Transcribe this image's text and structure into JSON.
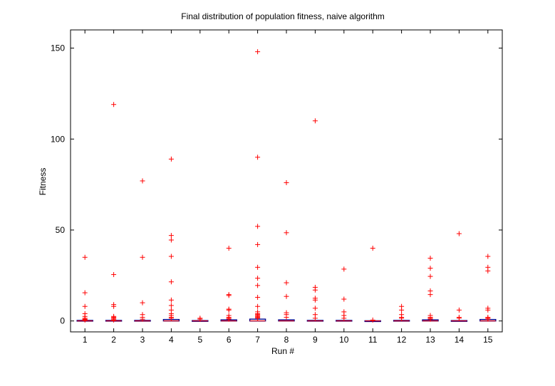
{
  "chart_data": {
    "type": "box",
    "title": "Final distribution of population fitness, naive algorithm",
    "xlabel": "Run #",
    "ylabel": "Fitness",
    "ylim": [
      -6,
      160
    ],
    "y_ticks": [
      0,
      50,
      100,
      150
    ],
    "categories": [
      "1",
      "2",
      "3",
      "4",
      "5",
      "6",
      "7",
      "8",
      "9",
      "10",
      "11",
      "12",
      "13",
      "14",
      "15"
    ],
    "grid": false,
    "legend": "none",
    "colors": {
      "outlier": "#ff0000",
      "median": "#ff0000",
      "box": "#00008b",
      "axis": "#000000"
    },
    "runs": [
      {
        "run": "1",
        "q1": 0,
        "median": 0,
        "q3": 0.3,
        "outliers": [
          35,
          15.5,
          8,
          4,
          2.5,
          1.5,
          1,
          0.8,
          0.5
        ]
      },
      {
        "run": "2",
        "q1": 0,
        "median": 0,
        "q3": 0.3,
        "outliers": [
          119,
          25.5,
          9,
          8,
          2.5,
          2,
          1.5,
          1,
          0.5
        ]
      },
      {
        "run": "3",
        "q1": 0,
        "median": 0,
        "q3": 0.3,
        "outliers": [
          77,
          35,
          10,
          3.5,
          2,
          1
        ]
      },
      {
        "run": "4",
        "q1": 0,
        "median": 0,
        "q3": 0.8,
        "outliers": [
          89,
          47,
          44.5,
          35.5,
          21.5,
          11.5,
          8.5,
          6,
          4,
          3,
          2,
          1.5
        ]
      },
      {
        "run": "5",
        "q1": 0,
        "median": 0,
        "q3": 0.2,
        "outliers": [
          1.5,
          1
        ]
      },
      {
        "run": "6",
        "q1": 0,
        "median": 0,
        "q3": 0.6,
        "outliers": [
          40,
          14.5,
          14,
          6.5,
          6,
          3,
          2,
          1.5,
          1
        ]
      },
      {
        "run": "7",
        "q1": 0,
        "median": 0,
        "q3": 1.0,
        "outliers": [
          148,
          90,
          52,
          42,
          29.5,
          23.5,
          19.5,
          13,
          8,
          5,
          4,
          3.5,
          3,
          2.5,
          2,
          1.5
        ]
      },
      {
        "run": "8",
        "q1": 0,
        "median": 0,
        "q3": 0.6,
        "outliers": [
          76,
          48.5,
          21,
          13.5,
          4.5,
          3.5,
          2
        ]
      },
      {
        "run": "9",
        "q1": 0,
        "median": 0,
        "q3": 0.3,
        "outliers": [
          110,
          18.5,
          17,
          12.5,
          11.5,
          7,
          3.5,
          1.5
        ]
      },
      {
        "run": "10",
        "q1": 0,
        "median": 0,
        "q3": 0.3,
        "outliers": [
          28.5,
          12,
          5,
          3,
          1.5
        ]
      },
      {
        "run": "11",
        "q1": 0,
        "median": 0,
        "q3": 0.1,
        "outliers": [
          40,
          0.5
        ]
      },
      {
        "run": "12",
        "q1": 0,
        "median": 0,
        "q3": 0.3,
        "outliers": [
          8,
          6,
          3.5,
          2,
          1.5
        ]
      },
      {
        "run": "13",
        "q1": 0,
        "median": 0,
        "q3": 0.6,
        "outliers": [
          34.5,
          29,
          24.5,
          16.5,
          14.5,
          3,
          2,
          1.5,
          1
        ]
      },
      {
        "run": "14",
        "q1": 0,
        "median": 0,
        "q3": 0.2,
        "outliers": [
          48,
          6,
          2,
          1.5
        ]
      },
      {
        "run": "15",
        "q1": 0,
        "median": 0,
        "q3": 0.8,
        "outliers": [
          35.5,
          29.5,
          27.5,
          7,
          6,
          2,
          1.5,
          1
        ]
      }
    ]
  }
}
